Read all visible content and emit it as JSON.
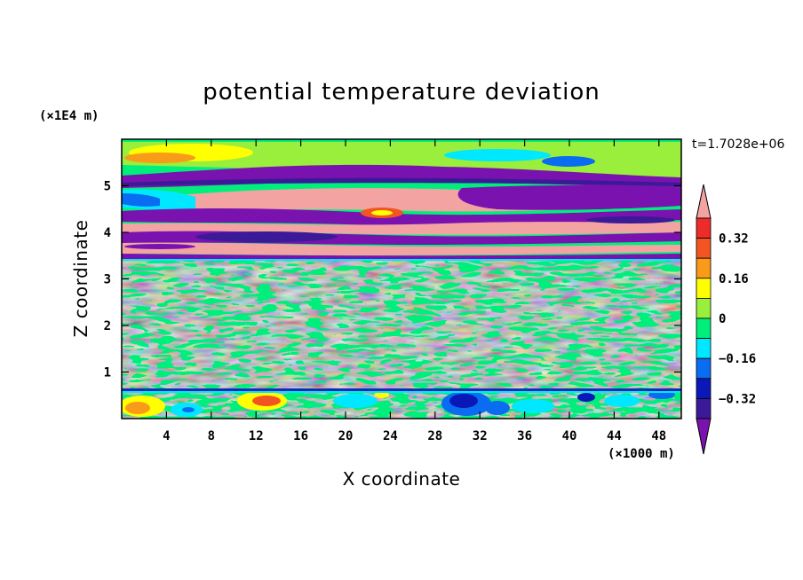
{
  "chart_data": {
    "type": "heatmap",
    "title": "potential temperature deviation",
    "xlabel": "X coordinate",
    "ylabel": "Z coordinate",
    "x_unit": "(×1000 m)",
    "y_unit": "(×1E4 m)",
    "time_label": "t=1.7028e+06",
    "xlim": [
      0,
      50
    ],
    "ylim": [
      0,
      6
    ],
    "x_ticks": [
      "4",
      "8",
      "12",
      "16",
      "20",
      "24",
      "28",
      "32",
      "36",
      "40",
      "44",
      "48"
    ],
    "x_tick_values": [
      4,
      8,
      12,
      16,
      20,
      24,
      28,
      32,
      36,
      40,
      44,
      48
    ],
    "y_ticks": [
      "1",
      "2",
      "3",
      "4",
      "5"
    ],
    "y_tick_values": [
      1,
      2,
      3,
      4,
      5
    ],
    "colorbar": {
      "level_step": 0.08,
      "levels": [
        -0.4,
        -0.32,
        -0.24,
        -0.16,
        -0.08,
        0,
        0.08,
        0.16,
        0.24,
        0.32,
        0.4
      ],
      "labels": [
        "0.32",
        "0.16",
        "0",
        "−0.16",
        "−0.32"
      ],
      "label_values": [
        0.32,
        0.16,
        0,
        -0.16,
        -0.32
      ],
      "colors_high_to_low": [
        "#f4a3a3",
        "#ee2b2b",
        "#f35522",
        "#f99a18",
        "#ffff00",
        "#9aee3c",
        "#00ee7c",
        "#00e8ff",
        "#0a6cf0",
        "#0a18b8",
        "#3a1a96",
        "#7a12b0"
      ],
      "extends": "both"
    },
    "layers": [
      {
        "z_range": [
          0,
          0.6
        ],
        "description_value": "mixed near-surface field, values from about -0.4 to +0.3"
      },
      {
        "z_range": [
          0.6,
          3.5
        ],
        "description_value": "weak deviations between about -0.08 and +0.08"
      },
      {
        "z_range": [
          3.5,
          5.1
        ],
        "description_value": "strong alternating bands of roughly +0.4 and -0.4"
      },
      {
        "z_range": [
          5.1,
          6.0
        ],
        "description_value": "mixed upper field, values around 0 to +0.3"
      }
    ]
  }
}
